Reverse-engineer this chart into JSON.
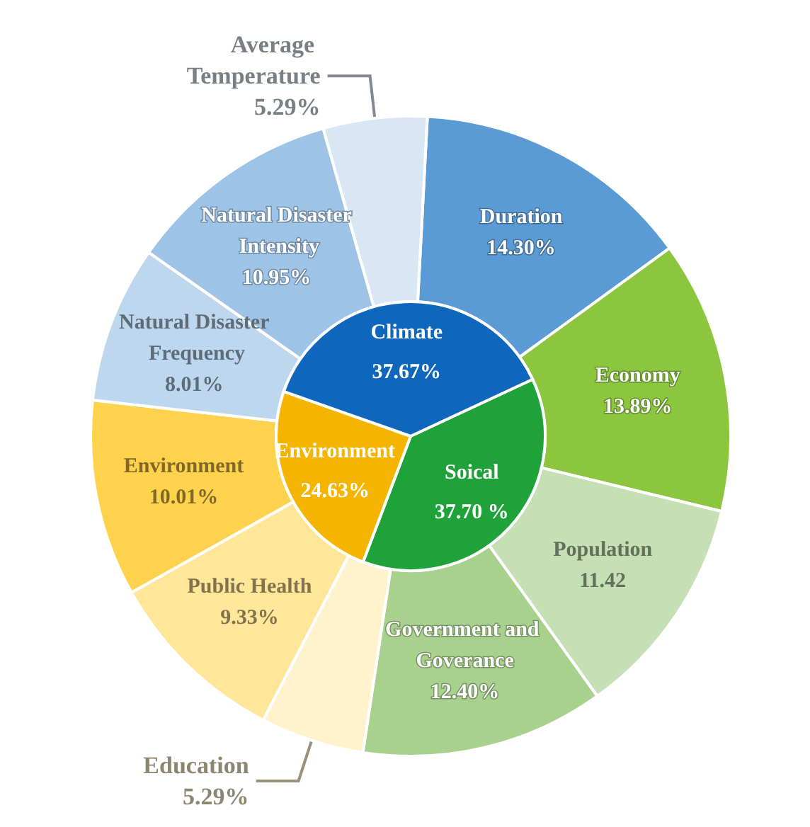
{
  "chart_data": [
    {
      "type": "pie",
      "categories": [
        "Soical",
        "Environment",
        "Climate"
      ],
      "values": [
        37.7,
        24.63,
        37.67
      ],
      "colors": [
        "#1fa23a",
        "#f5b400",
        "#0f67bd"
      ],
      "value_labels": [
        "37.70 %",
        "24.63%",
        "37.67%"
      ]
    },
    {
      "type": "donut",
      "categories": [
        "Duration",
        "Economy",
        "Population",
        "Government and Goverance",
        "Education",
        "Public Health",
        "Environment",
        "Natural Disaster Frequency",
        "Natural Disaster Intensity",
        "Average Temperature"
      ],
      "values": [
        14.3,
        13.89,
        11.42,
        12.4,
        5.29,
        9.33,
        10.01,
        8.01,
        10.95,
        5.29
      ],
      "colors": [
        "#5b9bd5",
        "#8cc63f",
        "#c5e0b4",
        "#a9d18e",
        "#fff2cc",
        "#ffe699",
        "#ffd24d",
        "#bdd7ee",
        "#9dc3e6",
        "#d9e7f5"
      ],
      "value_labels": [
        "14.30%",
        "13.89%",
        "11.42",
        "12.40%",
        "5.29%",
        "9.33%",
        "10.01%",
        "8.01%",
        "10.95%",
        "5.29%"
      ]
    }
  ]
}
